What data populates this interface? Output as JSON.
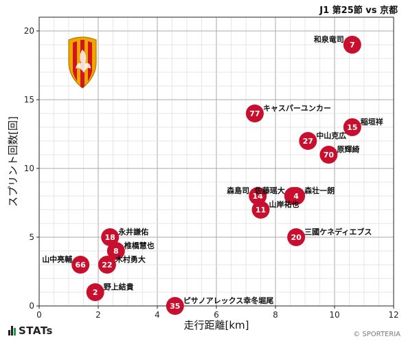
{
  "header": {
    "match_title": "J1 第25節 vs 京都"
  },
  "footer": {
    "brand": "STATs",
    "copyright": "© SPORTERIA"
  },
  "colors": {
    "marker": "#c8102e",
    "marker_text": "#ffffff",
    "grid_major": "#aaaaaa",
    "grid_minor": "#dddddd",
    "crest_outer": "#f0a500",
    "crest_inner": "#d0171d"
  },
  "chart_data": {
    "type": "scatter",
    "title": "",
    "xlabel": "走行距離[km]",
    "ylabel": "スプリント回数[回]",
    "xlim": [
      0,
      12
    ],
    "ylim": [
      0,
      21
    ],
    "xticks": [
      0,
      2,
      4,
      6,
      8,
      10,
      12
    ],
    "yticks": [
      0,
      5,
      10,
      15,
      20
    ],
    "grid": true,
    "points": [
      {
        "number": "7",
        "name": "和泉竜司",
        "x": 10.6,
        "y": 19,
        "label_side": "left"
      },
      {
        "number": "77",
        "name": "キャスパーユンカー",
        "x": 7.3,
        "y": 14,
        "label_side": "right"
      },
      {
        "number": "15",
        "name": "稲垣祥",
        "x": 10.6,
        "y": 13,
        "label_side": "right"
      },
      {
        "number": "27",
        "name": "中山克広",
        "x": 9.1,
        "y": 12,
        "label_side": "right"
      },
      {
        "number": "70",
        "name": "原輝綺",
        "x": 9.8,
        "y": 11,
        "label_side": "right"
      },
      {
        "number": "14",
        "name": "森島司",
        "x": 7.4,
        "y": 8,
        "label_side": "left"
      },
      {
        "number": "3",
        "name": "佐藤瑶大",
        "x": 8.6,
        "y": 8,
        "label_side": "left"
      },
      {
        "number": "4",
        "name": "森壮一朗",
        "x": 8.7,
        "y": 8,
        "label_side": "right"
      },
      {
        "number": "11",
        "name": "山岸祐也",
        "x": 7.5,
        "y": 7,
        "label_side": "right"
      },
      {
        "number": "20",
        "name": "三國ケネディエブス",
        "x": 8.7,
        "y": 5,
        "label_side": "right"
      },
      {
        "number": "18",
        "name": "永井謙佑",
        "x": 2.4,
        "y": 5,
        "label_side": "right"
      },
      {
        "number": "8",
        "name": "椎橋慧也",
        "x": 2.6,
        "y": 4,
        "label_side": "right"
      },
      {
        "number": "66",
        "name": "山中亮輔",
        "x": 1.4,
        "y": 3,
        "label_side": "left"
      },
      {
        "number": "22",
        "name": "木村勇大",
        "x": 2.3,
        "y": 3,
        "label_side": "right"
      },
      {
        "number": "2",
        "name": "野上結貴",
        "x": 1.9,
        "y": 1,
        "label_side": "right"
      },
      {
        "number": "35",
        "name": "ピサノアレックス幸冬堀尾",
        "x": 4.6,
        "y": 0,
        "label_side": "right"
      }
    ]
  }
}
